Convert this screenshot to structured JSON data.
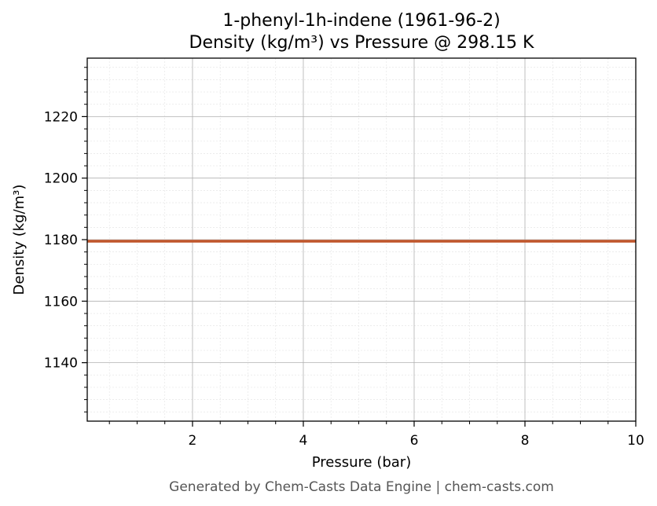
{
  "chart_data": {
    "type": "line",
    "title": "1-phenyl-1h-indene (1961-96-2)",
    "subtitle": "Density (kg/m³) vs Pressure @ 298.15 K",
    "xlabel": "Pressure (bar)",
    "ylabel": "Density (kg/m³)",
    "xlim": [
      0.1,
      10
    ],
    "ylim": [
      1121,
      1239
    ],
    "x_ticks": [
      2,
      4,
      6,
      8,
      10
    ],
    "y_ticks": [
      1140,
      1160,
      1180,
      1200,
      1220
    ],
    "x_tick_labels": [
      "2",
      "4",
      "6",
      "8",
      "10"
    ],
    "y_tick_labels": [
      "1140",
      "1160",
      "1180",
      "1200",
      "1220"
    ],
    "grid": true,
    "minor_grid": true,
    "legend": "none",
    "series": [
      {
        "color": "#c0562b",
        "x": [
          0.1,
          1,
          2,
          3,
          4,
          5,
          6,
          7,
          8,
          9,
          10
        ],
        "values": [
          1179.5,
          1179.5,
          1179.5,
          1179.5,
          1179.5,
          1179.5,
          1179.5,
          1179.5,
          1179.5,
          1179.5,
          1179.5
        ]
      }
    ]
  },
  "footer": "Generated by Chem-Casts Data Engine | chem-casts.com"
}
